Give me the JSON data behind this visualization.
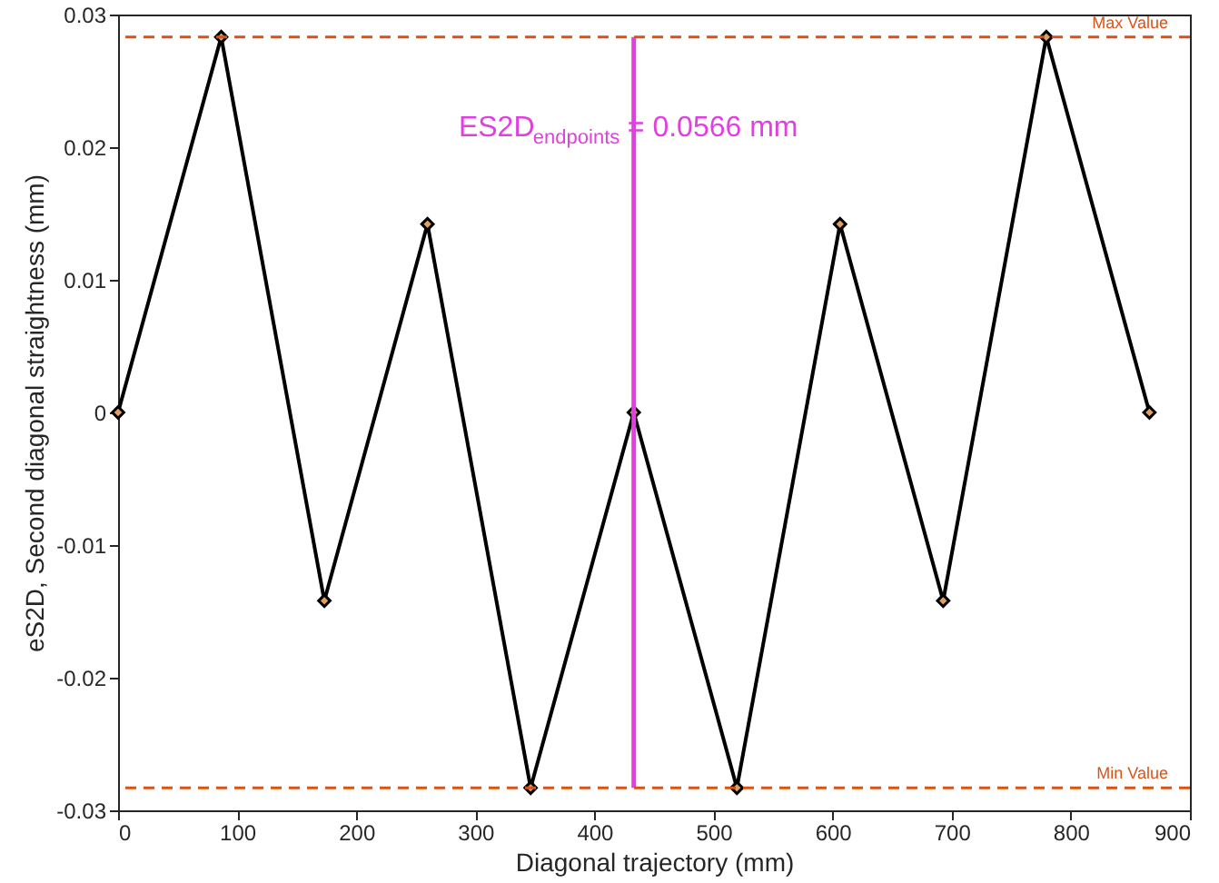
{
  "chart_data": {
    "type": "line",
    "xlabel": "Diagonal trajectory (mm)",
    "ylabel": "eS2D, Second diagonal straightness (mm)",
    "x": [
      0,
      86.6,
      173.2,
      259.8,
      346.4,
      433,
      519.6,
      606.2,
      692.8,
      779.4,
      866
    ],
    "series": [
      {
        "color": "#000000",
        "values": [
          0,
          0.0283,
          -0.0142,
          0.0142,
          -0.0283,
          0,
          -0.0283,
          0.0142,
          -0.0142,
          0.0283,
          0
        ],
        "marker": "diamond"
      },
      {
        "color": "#e040e0",
        "x": [
          433,
          433
        ],
        "values": [
          -0.0283,
          0.0283
        ],
        "marker": "none"
      }
    ],
    "xlim": [
      0,
      900
    ],
    "xticks": [
      0,
      100,
      200,
      300,
      400,
      500,
      600,
      700,
      800,
      900
    ],
    "ylim": [
      -0.03,
      0.03
    ],
    "yticks": [
      -0.03,
      -0.02,
      -0.01,
      0,
      0.01,
      0.02,
      0.03
    ],
    "ref_lines": [
      {
        "axis": "y",
        "value": 0.0283,
        "label": "Max Value",
        "color": "#d95319",
        "line_style": "dashed"
      },
      {
        "axis": "y",
        "value": -0.0283,
        "label": "Min Value",
        "color": "#d95319",
        "line_style": "dashed"
      }
    ],
    "annotations": [
      {
        "text": "ES2D$_{endpoints}$ = 0.0566 mm",
        "x": 433,
        "y": 0.0215
      }
    ],
    "grid": false,
    "line_style": "solid"
  }
}
